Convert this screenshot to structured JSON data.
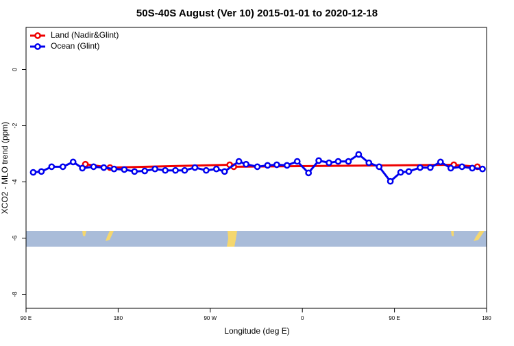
{
  "chart_data": {
    "type": "line",
    "title": "50S-40S August (Ver 10)   2015-01-01 to 2020-12-18",
    "x_label": "Longitude (deg E)",
    "y_label": "XCO2 - MLO trend (ppm)",
    "xlim": [
      90,
      540
    ],
    "ylim": [
      -8.5,
      1.5
    ],
    "xticks": [
      {
        "value": 90,
        "label": "90 E"
      },
      {
        "value": 180,
        "label": "180"
      },
      {
        "value": 270,
        "label": "90 W"
      },
      {
        "value": 360,
        "label": "0"
      },
      {
        "value": 450,
        "label": "90 E"
      },
      {
        "value": 540,
        "label": "180"
      }
    ],
    "yticks": [
      -8,
      -6,
      -4,
      -2,
      0
    ],
    "legend": "top-left",
    "series": [
      {
        "name": "Land (Nadir&Glint)",
        "color": "#ee0000",
        "x": [
          148,
          172,
          289,
          293,
          508,
          531
        ],
        "values": [
          -3.37,
          -3.49,
          -3.39,
          -3.46,
          -3.39,
          -3.46
        ]
      },
      {
        "name": "Ocean (Glint)",
        "color": "#0000ee",
        "x": [
          97,
          105,
          115,
          126,
          136,
          145,
          156,
          166,
          176,
          186,
          196,
          206,
          216,
          226,
          236,
          245,
          255,
          266,
          276,
          284,
          298,
          305,
          316,
          326,
          335,
          345,
          355,
          366,
          376,
          386,
          395,
          405,
          415,
          425,
          435,
          446,
          456,
          464,
          475,
          485,
          495,
          505,
          516,
          526,
          536
        ],
        "values": [
          -3.66,
          -3.63,
          -3.46,
          -3.46,
          -3.29,
          -3.51,
          -3.46,
          -3.49,
          -3.54,
          -3.56,
          -3.63,
          -3.61,
          -3.54,
          -3.59,
          -3.59,
          -3.59,
          -3.49,
          -3.59,
          -3.54,
          -3.63,
          -3.27,
          -3.37,
          -3.46,
          -3.41,
          -3.39,
          -3.41,
          -3.27,
          -3.68,
          -3.24,
          -3.32,
          -3.27,
          -3.27,
          -3.02,
          -3.32,
          -3.46,
          -3.98,
          -3.66,
          -3.63,
          -3.49,
          -3.49,
          -3.29,
          -3.51,
          -3.46,
          -3.51,
          -3.54
        ]
      }
    ]
  }
}
